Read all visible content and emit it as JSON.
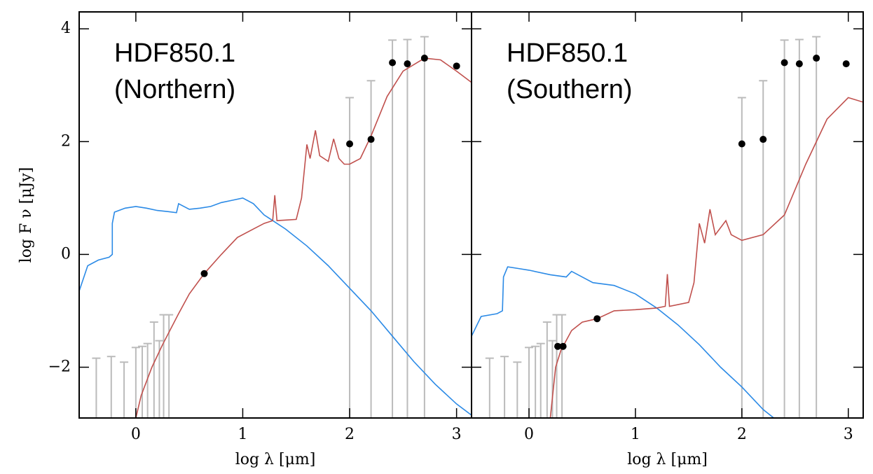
{
  "chart_data": [
    {
      "type": "sed",
      "title": [
        "HDF850.1",
        "(Northern)"
      ],
      "xlabel": "log λ [μm]",
      "ylabel": "log F ν [μJy]",
      "xlim": [
        -0.53,
        3.14
      ],
      "ylim": [
        -2.9,
        4.3
      ],
      "xticks": [
        0,
        1,
        2,
        3
      ],
      "yticks": [
        {
          "value": -2,
          "label": "−2"
        },
        0,
        2,
        4
      ],
      "series": [
        {
          "color": "#2b8ae6",
          "x": [
            -0.53,
            -0.45,
            -0.35,
            -0.25,
            -0.22,
            -0.22,
            -0.2,
            -0.1,
            0.0,
            0.1,
            0.2,
            0.3,
            0.38,
            0.4,
            0.5,
            0.6,
            0.7,
            0.8,
            0.9,
            1.0,
            1.1,
            1.2,
            1.4,
            1.6,
            1.8,
            2.0,
            2.2,
            2.4,
            2.6,
            2.8,
            3.0,
            3.14
          ],
          "y": [
            -0.65,
            -0.2,
            -0.1,
            -0.05,
            0.0,
            0.55,
            0.75,
            0.82,
            0.85,
            0.82,
            0.78,
            0.76,
            0.74,
            0.9,
            0.8,
            0.82,
            0.85,
            0.92,
            0.96,
            1.0,
            0.9,
            0.7,
            0.45,
            0.15,
            -0.2,
            -0.6,
            -1.0,
            -1.45,
            -1.9,
            -2.3,
            -2.65,
            -2.85
          ]
        },
        {
          "color": "#c0504d",
          "x": [
            0.0,
            0.05,
            0.15,
            0.25,
            0.4,
            0.5,
            0.64,
            0.8,
            0.95,
            1.1,
            1.2,
            1.28,
            1.3,
            1.32,
            1.5,
            1.55,
            1.6,
            1.63,
            1.68,
            1.72,
            1.8,
            1.85,
            1.9,
            1.95,
            2.0,
            2.1,
            2.2,
            2.35,
            2.5,
            2.7,
            2.85,
            3.0,
            3.14
          ],
          "y": [
            -2.9,
            -2.5,
            -2.0,
            -1.6,
            -1.05,
            -0.7,
            -0.34,
            0.0,
            0.3,
            0.45,
            0.55,
            0.6,
            1.05,
            0.6,
            0.62,
            1.0,
            1.95,
            1.7,
            2.2,
            1.75,
            1.65,
            2.05,
            1.7,
            1.6,
            1.6,
            1.7,
            2.1,
            2.8,
            3.25,
            3.48,
            3.45,
            3.25,
            3.05
          ]
        }
      ],
      "points": {
        "x": [
          0.64,
          2.0,
          2.2,
          2.4,
          2.54,
          2.7,
          3.0
        ],
        "y": [
          -0.34,
          1.96,
          2.04,
          3.4,
          3.38,
          3.48,
          3.34
        ]
      },
      "upper_limits": {
        "x": [
          -0.37,
          -0.23,
          -0.11,
          0.0,
          0.06,
          0.11,
          0.17,
          0.22,
          0.26,
          0.31,
          2.0,
          2.2,
          2.4,
          2.54,
          2.7
        ],
        "values": [
          -1.84,
          -1.81,
          -1.91,
          -1.65,
          -1.63,
          -1.58,
          -1.2,
          -1.53,
          -1.07,
          -1.07,
          2.78,
          3.08,
          3.8,
          3.81,
          3.86
        ]
      }
    },
    {
      "type": "sed",
      "title": [
        "HDF850.1",
        "(Southern)"
      ],
      "xlabel": "log λ [μm]",
      "xlim": [
        -0.54,
        3.14
      ],
      "ylim": [
        -2.9,
        4.3
      ],
      "xticks": [
        0,
        1,
        2,
        3
      ],
      "yticks": [
        -2,
        0,
        2,
        4
      ],
      "series": [
        {
          "color": "#2b8ae6",
          "x": [
            -0.54,
            -0.45,
            -0.3,
            -0.25,
            -0.24,
            -0.2,
            -0.1,
            0.0,
            0.2,
            0.35,
            0.4,
            0.6,
            0.8,
            1.0,
            1.2,
            1.4,
            1.6,
            1.8,
            2.0,
            2.2,
            2.3
          ],
          "y": [
            -1.45,
            -1.1,
            -1.05,
            -1.0,
            -0.4,
            -0.22,
            -0.25,
            -0.28,
            -0.36,
            -0.4,
            -0.3,
            -0.5,
            -0.55,
            -0.7,
            -0.95,
            -1.25,
            -1.6,
            -2.0,
            -2.35,
            -2.75,
            -2.9
          ]
        },
        {
          "color": "#c0504d",
          "x": [
            0.2,
            0.25,
            0.3,
            0.4,
            0.5,
            0.64,
            0.8,
            1.0,
            1.2,
            1.28,
            1.3,
            1.32,
            1.5,
            1.55,
            1.6,
            1.65,
            1.7,
            1.75,
            1.85,
            1.9,
            2.0,
            2.2,
            2.4,
            2.6,
            2.8,
            3.0,
            3.14
          ],
          "y": [
            -2.9,
            -2.0,
            -1.7,
            -1.35,
            -1.2,
            -1.14,
            -1.0,
            -0.98,
            -0.95,
            -0.92,
            -0.35,
            -0.92,
            -0.85,
            -0.5,
            0.55,
            0.2,
            0.8,
            0.35,
            0.6,
            0.35,
            0.25,
            0.35,
            0.7,
            1.6,
            2.4,
            2.78,
            2.7
          ]
        }
      ],
      "points": {
        "x": [
          0.27,
          0.32,
          0.64,
          2.0,
          2.2,
          2.4,
          2.54,
          2.7,
          2.98
        ],
        "y": [
          -1.63,
          -1.63,
          -1.14,
          1.96,
          2.04,
          3.4,
          3.38,
          3.48,
          3.38
        ]
      },
      "upper_limits": {
        "x": [
          -0.37,
          -0.23,
          -0.11,
          0.0,
          0.06,
          0.11,
          0.17,
          0.22,
          0.26,
          0.31,
          2.0,
          2.2,
          2.4,
          2.54,
          2.7
        ],
        "values": [
          -1.84,
          -1.81,
          -1.91,
          -1.65,
          -1.63,
          -1.58,
          -1.2,
          -1.53,
          -1.07,
          -1.07,
          2.78,
          3.08,
          3.8,
          3.81,
          3.86
        ]
      }
    }
  ]
}
